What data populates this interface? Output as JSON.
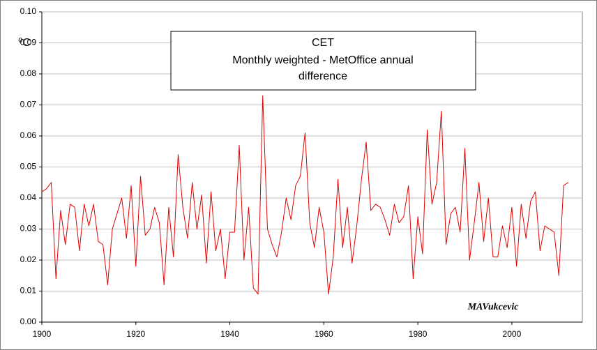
{
  "chart_data": {
    "type": "line",
    "title": [
      "CET",
      "Monthly weighted - MetOffice annual",
      "difference"
    ],
    "y_label": "⁰C",
    "annotation": "MAVukcevic",
    "x": [
      1900,
      1901,
      1902,
      1903,
      1904,
      1905,
      1906,
      1907,
      1908,
      1909,
      1910,
      1911,
      1912,
      1913,
      1914,
      1915,
      1916,
      1917,
      1918,
      1919,
      1920,
      1921,
      1922,
      1923,
      1924,
      1925,
      1926,
      1927,
      1928,
      1929,
      1930,
      1931,
      1932,
      1933,
      1934,
      1935,
      1936,
      1937,
      1938,
      1939,
      1940,
      1941,
      1942,
      1943,
      1944,
      1945,
      1946,
      1947,
      1948,
      1949,
      1950,
      1951,
      1952,
      1953,
      1954,
      1955,
      1956,
      1957,
      1958,
      1959,
      1960,
      1961,
      1962,
      1963,
      1964,
      1965,
      1966,
      1967,
      1968,
      1969,
      1970,
      1971,
      1972,
      1973,
      1974,
      1975,
      1976,
      1977,
      1978,
      1979,
      1980,
      1981,
      1982,
      1983,
      1984,
      1985,
      1986,
      1987,
      1988,
      1989,
      1990,
      1991,
      1992,
      1993,
      1994,
      1995,
      1996,
      1997,
      1998,
      1999,
      2000,
      2001,
      2002,
      2003,
      2004,
      2005,
      2006,
      2007,
      2008,
      2009,
      2010,
      2011,
      2012
    ],
    "series": [
      {
        "name": "CET difference",
        "color": "#e00000",
        "values": [
          0.042,
          0.043,
          0.045,
          0.014,
          0.036,
          0.025,
          0.038,
          0.037,
          0.023,
          0.038,
          0.031,
          0.038,
          0.026,
          0.025,
          0.012,
          0.03,
          0.035,
          0.04,
          0.027,
          0.044,
          0.018,
          0.047,
          0.028,
          0.03,
          0.037,
          0.032,
          0.012,
          0.037,
          0.021,
          0.054,
          0.037,
          0.027,
          0.045,
          0.03,
          0.041,
          0.019,
          0.042,
          0.023,
          0.03,
          0.014,
          0.029,
          0.029,
          0.057,
          0.02,
          0.037,
          0.011,
          0.009,
          0.073,
          0.03,
          0.025,
          0.021,
          0.029,
          0.04,
          0.033,
          0.044,
          0.047,
          0.061,
          0.032,
          0.024,
          0.037,
          0.029,
          0.009,
          0.021,
          0.046,
          0.024,
          0.037,
          0.019,
          0.031,
          0.046,
          0.058,
          0.036,
          0.038,
          0.037,
          0.033,
          0.028,
          0.038,
          0.032,
          0.034,
          0.044,
          0.014,
          0.034,
          0.022,
          0.062,
          0.038,
          0.045,
          0.068,
          0.025,
          0.035,
          0.037,
          0.029,
          0.056,
          0.02,
          0.032,
          0.045,
          0.026,
          0.04,
          0.021,
          0.021,
          0.031,
          0.024,
          0.037,
          0.018,
          0.038,
          0.027,
          0.039,
          0.042,
          0.023,
          0.031,
          0.03,
          0.029,
          0.015,
          0.044,
          0.045
        ]
      }
    ],
    "xlim": [
      1900,
      2015
    ],
    "xticks": [
      1900,
      1920,
      1940,
      1960,
      1980,
      2000
    ],
    "ylim": [
      0,
      0.1
    ],
    "yticks": [
      {
        "value": 0,
        "label": "0.00"
      },
      {
        "value": 0.01,
        "label": "0.01"
      },
      {
        "value": 0.02,
        "label": "0.02"
      },
      {
        "value": 0.03,
        "label": "0.03"
      },
      {
        "value": 0.04,
        "label": "0.04"
      },
      {
        "value": 0.05,
        "label": "0.05"
      },
      {
        "value": 0.06,
        "label": "0.06"
      },
      {
        "value": 0.07,
        "label": "0.07"
      },
      {
        "value": 0.08,
        "label": "0.08"
      },
      {
        "value": 0.09,
        "label": "0.09"
      },
      {
        "value": 0.1,
        "label": "0.10"
      }
    ],
    "grid": true
  }
}
